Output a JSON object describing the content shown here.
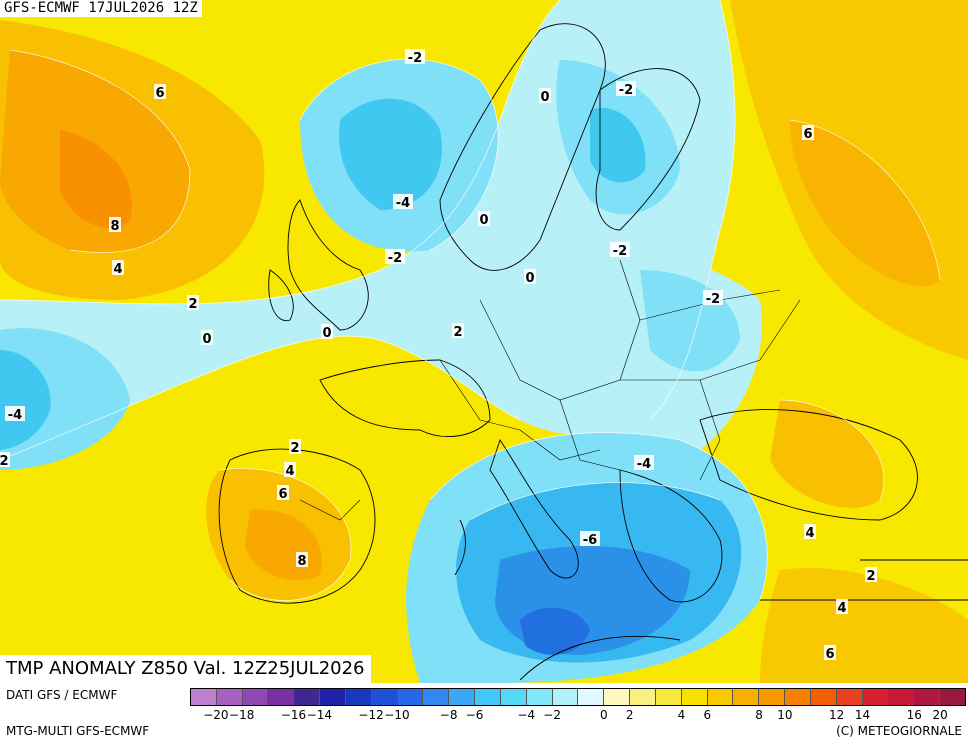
{
  "header": {
    "run_label": "GFS-ECMWF 17JUL2026 12Z"
  },
  "title": {
    "text": "TMP ANOMALY Z850 Val. 12Z25JUL2026"
  },
  "footer": {
    "source_line1": "DATI GFS / ECMWF",
    "source_line2": "MTG-MULTI GFS-ECMWF",
    "credit": "(C) METEOGIORNALE"
  },
  "legend": {
    "colors": [
      "#c080d0",
      "#a860c0",
      "#9048b0",
      "#7a30a0",
      "#402890",
      "#2020a8",
      "#1838c0",
      "#2050d8",
      "#2868e8",
      "#3088f0",
      "#38a8f8",
      "#40c8f8",
      "#58d8f8",
      "#80e8f8",
      "#b0f0f8",
      "#e0f8ff",
      "#fff8c0",
      "#f8f080",
      "#f8e840",
      "#f8e000",
      "#f8c800",
      "#f8b000",
      "#f89800",
      "#f88000",
      "#f06000",
      "#e84020",
      "#d82030",
      "#c81838",
      "#b01840",
      "#981840"
    ],
    "tick_labels": [
      "−20",
      "−18",
      "−16",
      "−14",
      "−12",
      "−10",
      "−8",
      "−6",
      "−4",
      "−2",
      "0",
      "2",
      "4",
      "6",
      "8",
      "10",
      "12",
      "14",
      "16",
      "20"
    ]
  },
  "contour_labels": [
    {
      "text": "6",
      "color": "warm"
    },
    {
      "text": "8",
      "color": "warm"
    },
    {
      "text": "4",
      "color": "warm"
    },
    {
      "text": "2",
      "color": "warm"
    },
    {
      "text": "0",
      "color": "cool"
    },
    {
      "text": "-4",
      "color": "cool"
    },
    {
      "text": "2",
      "color": "warm"
    },
    {
      "text": "-2",
      "color": "cool"
    },
    {
      "text": "-4",
      "color": "cool"
    },
    {
      "text": "-2",
      "color": "cool"
    },
    {
      "text": "0",
      "color": "cool"
    },
    {
      "text": "0",
      "color": "cool"
    },
    {
      "text": "0",
      "color": "cool"
    },
    {
      "text": "-2",
      "color": "cool"
    },
    {
      "text": "-2",
      "color": "cool"
    },
    {
      "text": "-2",
      "color": "cool"
    },
    {
      "text": "0",
      "color": "cool"
    },
    {
      "text": "2",
      "color": "warm"
    },
    {
      "text": "6",
      "color": "warm"
    },
    {
      "text": "2",
      "color": "warm"
    },
    {
      "text": "4",
      "color": "warm"
    },
    {
      "text": "6",
      "color": "warm"
    },
    {
      "text": "8",
      "color": "warm"
    },
    {
      "text": "-4",
      "color": "cool"
    },
    {
      "text": "-6",
      "color": "cool"
    },
    {
      "text": "4",
      "color": "warm"
    },
    {
      "text": "2",
      "color": "warm"
    },
    {
      "text": "4",
      "color": "warm"
    },
    {
      "text": "6",
      "color": "warm"
    }
  ]
}
